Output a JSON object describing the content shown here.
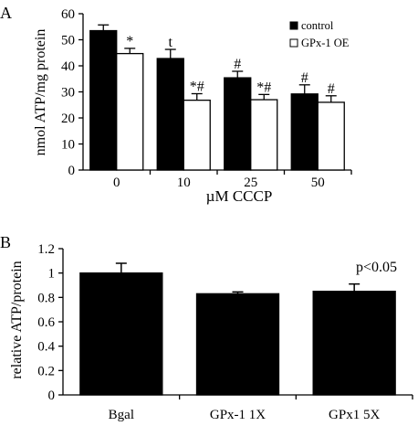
{
  "chart_data": [
    {
      "panel_label": "A",
      "type": "bar",
      "categories": [
        "0",
        "10",
        "25",
        "50"
      ],
      "series": [
        {
          "name": "control",
          "values": [
            53.5,
            42.8,
            35.4,
            29.2
          ],
          "errors": [
            2.2,
            3.5,
            2.5,
            3.5
          ],
          "marks": [
            "",
            "t",
            "#",
            "#"
          ],
          "color": "#000000"
        },
        {
          "name": "GPx-1 OE",
          "values": [
            44.7,
            26.8,
            27.0,
            26.0
          ],
          "errors": [
            2.0,
            2.5,
            2.0,
            2.5
          ],
          "marks": [
            "*",
            "*#",
            "*#",
            "#"
          ],
          "color": "#ffffff"
        }
      ],
      "ylabel": "nmol ATP/mg protein",
      "xlabel": "µM CCCP",
      "ylim": [
        0,
        60
      ],
      "yticks": [
        "0",
        "10",
        "20",
        "30",
        "40",
        "50",
        "60"
      ],
      "legend_position": "top-right",
      "grid": false
    },
    {
      "panel_label": "B",
      "type": "bar",
      "categories": [
        "Bgal",
        "GPx-1 1X",
        "GPx1 5X"
      ],
      "values": [
        1.0,
        0.83,
        0.85
      ],
      "errors": [
        0.08,
        0.015,
        0.06
      ],
      "color": "#000000",
      "ylabel": "relative ATP/protein",
      "ylim": [
        0,
        1.2
      ],
      "yticks": [
        "0",
        "0.2",
        "0.4",
        "0.6",
        "0.8",
        "1",
        "1.2"
      ],
      "annotation": "p<0.05",
      "grid": false
    }
  ]
}
